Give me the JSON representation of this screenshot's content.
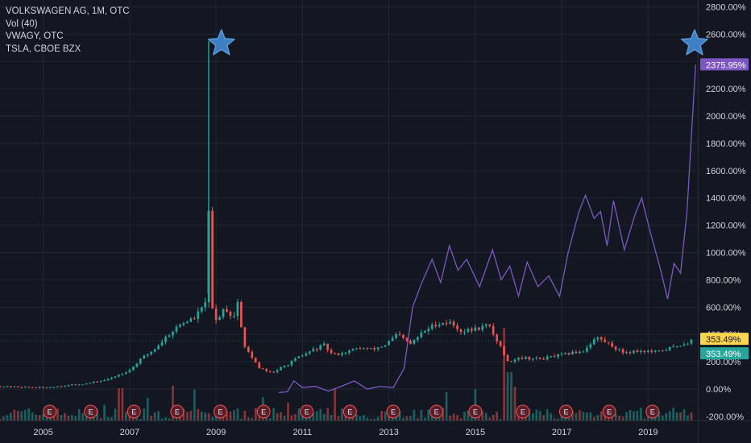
{
  "legend": {
    "main": "VOLKSWAGEN AG, 1M, OTC",
    "volume": "Vol (40)",
    "compare1": "VWAGY, OTC",
    "compare2": "TSLA, CBOE BZX"
  },
  "colors": {
    "background": "#131722",
    "grid": "#232734",
    "up": "#26a69a",
    "down": "#ef5350",
    "tsla_line": "#7e57c2",
    "vwagy_line": "#ffd54f",
    "star": "#3d7fc2",
    "earnings_fill": "#5a1f2a",
    "earnings_stroke": "#ef5350"
  },
  "chart_data": {
    "type": "candlestick",
    "y_unit": "percent change",
    "y_range": [
      -230,
      2850
    ],
    "y_ticks": [
      -200,
      0,
      200,
      400,
      600,
      800,
      1000,
      1200,
      1400,
      1600,
      1800,
      2000,
      2200,
      2400,
      2600,
      2800
    ],
    "y_tick_labels": [
      "-200.00%",
      "0.00%",
      "200.00%",
      "400.00%",
      "600.00%",
      "800.00%",
      "1000.00%",
      "1200.00%",
      "1400.00%",
      "1600.00%",
      "1800.00%",
      "2000.00%",
      "2200.00%",
      "2400.00%",
      "2600.00%",
      "2800.00%"
    ],
    "x_range": [
      2004.0,
      2020.15
    ],
    "x_ticks": [
      2005,
      2007,
      2009,
      2011,
      2013,
      2015,
      2017,
      2019
    ],
    "x_tick_labels": [
      "2005",
      "2007",
      "2009",
      "2011",
      "2013",
      "2015",
      "2017",
      "2019"
    ],
    "vw_close_path": [
      [
        2004.0,
        20
      ],
      [
        2004.5,
        15
      ],
      [
        2005.0,
        10
      ],
      [
        2005.5,
        25
      ],
      [
        2006.0,
        40
      ],
      [
        2006.5,
        70
      ],
      [
        2007.0,
        140
      ],
      [
        2007.3,
        230
      ],
      [
        2007.6,
        300
      ],
      [
        2007.9,
        400
      ],
      [
        2008.2,
        480
      ],
      [
        2008.5,
        520
      ],
      [
        2008.7,
        600
      ],
      [
        2008.8,
        700
      ],
      [
        2008.83,
        1300
      ],
      [
        2008.9,
        600
      ],
      [
        2009.0,
        500
      ],
      [
        2009.2,
        600
      ],
      [
        2009.4,
        520
      ],
      [
        2009.55,
        700
      ],
      [
        2009.6,
        330
      ],
      [
        2009.8,
        250
      ],
      [
        2010.0,
        150
      ],
      [
        2010.3,
        120
      ],
      [
        2010.6,
        170
      ],
      [
        2010.9,
        230
      ],
      [
        2011.2,
        280
      ],
      [
        2011.5,
        320
      ],
      [
        2011.7,
        250
      ],
      [
        2012.0,
        270
      ],
      [
        2012.3,
        300
      ],
      [
        2012.6,
        290
      ],
      [
        2012.9,
        320
      ],
      [
        2013.2,
        400
      ],
      [
        2013.5,
        330
      ],
      [
        2013.8,
        420
      ],
      [
        2014.1,
        480
      ],
      [
        2014.4,
        490
      ],
      [
        2014.7,
        420
      ],
      [
        2015.0,
        440
      ],
      [
        2015.3,
        470
      ],
      [
        2015.6,
        300
      ],
      [
        2015.75,
        200
      ],
      [
        2016.0,
        230
      ],
      [
        2016.5,
        220
      ],
      [
        2017.0,
        250
      ],
      [
        2017.5,
        280
      ],
      [
        2017.8,
        380
      ],
      [
        2018.1,
        330
      ],
      [
        2018.4,
        270
      ],
      [
        2018.8,
        280
      ],
      [
        2019.2,
        270
      ],
      [
        2019.5,
        300
      ],
      [
        2019.8,
        330
      ],
      [
        2020.0,
        353
      ]
    ],
    "spike": {
      "x": 2008.83,
      "high": 2550,
      "low": 900
    },
    "tsla_line": [
      [
        2010.45,
        -25
      ],
      [
        2010.65,
        -20
      ],
      [
        2010.8,
        60
      ],
      [
        2011.0,
        10
      ],
      [
        2011.3,
        20
      ],
      [
        2011.6,
        -15
      ],
      [
        2011.9,
        20
      ],
      [
        2012.2,
        60
      ],
      [
        2012.5,
        0
      ],
      [
        2012.8,
        20
      ],
      [
        2013.1,
        10
      ],
      [
        2013.35,
        150
      ],
      [
        2013.55,
        600
      ],
      [
        2013.75,
        770
      ],
      [
        2014.0,
        950
      ],
      [
        2014.2,
        780
      ],
      [
        2014.4,
        1050
      ],
      [
        2014.6,
        870
      ],
      [
        2014.8,
        950
      ],
      [
        2015.1,
        750
      ],
      [
        2015.4,
        1020
      ],
      [
        2015.6,
        800
      ],
      [
        2015.8,
        900
      ],
      [
        2016.0,
        680
      ],
      [
        2016.2,
        930
      ],
      [
        2016.45,
        750
      ],
      [
        2016.7,
        830
      ],
      [
        2016.95,
        680
      ],
      [
        2017.15,
        1000
      ],
      [
        2017.4,
        1300
      ],
      [
        2017.55,
        1420
      ],
      [
        2017.75,
        1250
      ],
      [
        2017.9,
        1300
      ],
      [
        2018.05,
        1050
      ],
      [
        2018.2,
        1380
      ],
      [
        2018.45,
        1020
      ],
      [
        2018.7,
        1280
      ],
      [
        2018.85,
        1400
      ],
      [
        2019.05,
        1150
      ],
      [
        2019.3,
        860
      ],
      [
        2019.45,
        660
      ],
      [
        2019.6,
        920
      ],
      [
        2019.75,
        850
      ],
      [
        2019.9,
        1300
      ],
      [
        2020.0,
        1850
      ],
      [
        2020.1,
        2376
      ]
    ],
    "earnings_markers": [
      2005.15,
      2006.1,
      2007.1,
      2008.1,
      2009.1,
      2010.1,
      2011.1,
      2012.1,
      2013.1,
      2014.1,
      2015.0,
      2016.1,
      2017.1,
      2018.1,
      2019.1
    ],
    "earnings_label": "E",
    "price_badges": [
      {
        "label": "2375.95%",
        "value": 2376,
        "color": "#7e57c2"
      },
      {
        "label": "353.49%",
        "value": 353.49,
        "color": "#ffd54f"
      },
      {
        "label": "353.49%",
        "value": 353.49,
        "color": "#26a69a"
      }
    ],
    "stars": [
      2009.05,
      2020.0
    ]
  }
}
